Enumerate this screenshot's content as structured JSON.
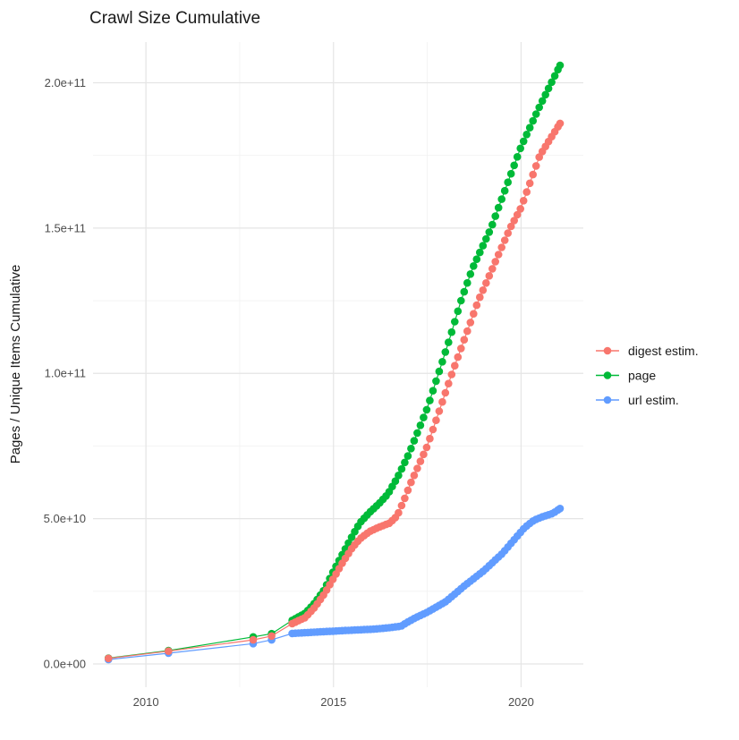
{
  "title": "Crawl Size Cumulative",
  "y_axis": {
    "title": "Pages / Unique Items Cumulative",
    "ticks": [
      {
        "v": 0,
        "label": "0.0e+00"
      },
      {
        "v": 50000000000.0,
        "label": "5.0e+10"
      },
      {
        "v": 100000000000.0,
        "label": "1.0e+11"
      },
      {
        "v": 150000000000.0,
        "label": "1.5e+11"
      },
      {
        "v": 200000000000.0,
        "label": "2.0e+11"
      }
    ],
    "minor": [
      25000000000.0,
      75000000000.0,
      125000000000.0,
      175000000000.0
    ]
  },
  "x_axis": {
    "ticks": [
      {
        "v": 2010,
        "label": "2010"
      },
      {
        "v": 2015,
        "label": "2015"
      },
      {
        "v": 2020,
        "label": "2020"
      }
    ],
    "minor": [
      2012.5,
      2017.5
    ]
  },
  "legend": {
    "items": [
      {
        "label": "digest estim.",
        "color": "#F8766D"
      },
      {
        "label": "page",
        "color": "#00BA38"
      },
      {
        "label": "url estim.",
        "color": "#619CFF"
      }
    ]
  },
  "palette": {
    "digest": "#F8766D",
    "page": "#00BA38",
    "url": "#619CFF",
    "grid_major": "#E5E5E5",
    "grid_minor": "#F2F2F2",
    "tick_text": "#4d4d4d",
    "text": "#1a1a1a",
    "background": "#ffffff"
  },
  "chart_data": {
    "type": "scatter",
    "title": "Crawl Size Cumulative",
    "xlabel": "",
    "ylabel": "Pages / Unique Items Cumulative",
    "x_unit": "year",
    "xlim": [
      2008.59,
      2021.66
    ],
    "ylim": [
      -8000000000.0,
      214000000000.0
    ],
    "grid": true,
    "legend_position": "right",
    "series": [
      {
        "name": "digest estim.",
        "color": "#F8766D",
        "points": [
          [
            2009.0,
            1900000000.0
          ],
          [
            2010.6,
            4400000000.0
          ],
          [
            2012.86,
            8300000000.0
          ],
          [
            2013.35,
            9600000000.0
          ],
          [
            2013.9,
            13900000000.0
          ],
          [
            2014.25,
            16000000000.0
          ],
          [
            2014.5,
            19500000000.0
          ],
          [
            2014.75,
            24000000000.0
          ],
          [
            2015.0,
            29500000000.0
          ],
          [
            2015.25,
            35000000000.0
          ],
          [
            2015.5,
            40000000000.0
          ],
          [
            2015.7,
            43000000000.0
          ],
          [
            2015.95,
            45500000000.0
          ],
          [
            2016.2,
            47000000000.0
          ],
          [
            2016.5,
            48500000000.0
          ],
          [
            2016.7,
            51000000000.0
          ],
          [
            2016.9,
            57000000000.0
          ],
          [
            2017.05,
            62000000000.0
          ],
          [
            2017.5,
            75000000000.0
          ],
          [
            2018.16,
            100000000000.0
          ],
          [
            2018.86,
            125000000000.0
          ],
          [
            2019.71,
            150000000000.0
          ],
          [
            2020.0,
            157000000000.0
          ],
          [
            2020.5,
            175000000000.0
          ],
          [
            2021.04,
            186000000000.0
          ]
        ]
      },
      {
        "name": "page",
        "color": "#00BA38",
        "points": [
          [
            2009.0,
            2000000000.0
          ],
          [
            2010.6,
            4600000000.0
          ],
          [
            2012.86,
            9300000000.0
          ],
          [
            2013.35,
            10400000000.0
          ],
          [
            2013.9,
            15000000000.0
          ],
          [
            2014.25,
            17500000000.0
          ],
          [
            2014.5,
            21000000000.0
          ],
          [
            2014.75,
            25500000000.0
          ],
          [
            2015.0,
            32000000000.0
          ],
          [
            2015.25,
            38000000000.0
          ],
          [
            2015.5,
            44000000000.0
          ],
          [
            2015.7,
            48500000000.0
          ],
          [
            2015.95,
            52000000000.0
          ],
          [
            2016.2,
            55000000000.0
          ],
          [
            2016.45,
            58500000000.0
          ],
          [
            2016.7,
            64000000000.0
          ],
          [
            2017.0,
            72000000000.0
          ],
          [
            2017.5,
            88000000000.0
          ],
          [
            2017.8,
            100000000000.0
          ],
          [
            2018.1,
            112000000000.0
          ],
          [
            2018.4,
            125000000000.0
          ],
          [
            2018.7,
            136000000000.0
          ],
          [
            2019.2,
            150000000000.0
          ],
          [
            2020.0,
            178000000000.0
          ],
          [
            2020.5,
            192000000000.0
          ],
          [
            2021.04,
            206000000000.0
          ]
        ]
      },
      {
        "name": "url estim.",
        "color": "#619CFF",
        "points": [
          [
            2009.0,
            1500000000.0
          ],
          [
            2010.6,
            3700000000.0
          ],
          [
            2012.86,
            7000000000.0
          ],
          [
            2013.35,
            8300000000.0
          ],
          [
            2013.9,
            10500000000.0
          ],
          [
            2014.3,
            10800000000.0
          ],
          [
            2015.0,
            11300000000.0
          ],
          [
            2015.6,
            11700000000.0
          ],
          [
            2016.1,
            12000000000.0
          ],
          [
            2016.5,
            12500000000.0
          ],
          [
            2016.8,
            13000000000.0
          ],
          [
            2016.95,
            14200000000.0
          ],
          [
            2017.2,
            16000000000.0
          ],
          [
            2017.5,
            17800000000.0
          ],
          [
            2018.0,
            21500000000.0
          ],
          [
            2018.5,
            27000000000.0
          ],
          [
            2019.0,
            32000000000.0
          ],
          [
            2019.5,
            38000000000.0
          ],
          [
            2019.9,
            44000000000.0
          ],
          [
            2020.1,
            47000000000.0
          ],
          [
            2020.35,
            49500000000.0
          ],
          [
            2020.6,
            50800000000.0
          ],
          [
            2020.85,
            51800000000.0
          ],
          [
            2021.04,
            53500000000.0
          ]
        ]
      }
    ],
    "sampling": {
      "dense_from": 2013.9,
      "samples_per_year": 12
    }
  }
}
